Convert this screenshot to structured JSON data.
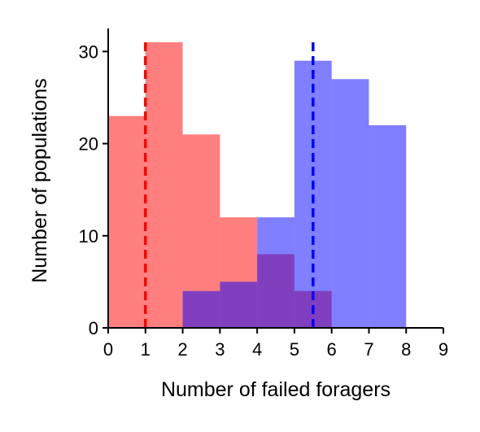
{
  "chart_data": {
    "type": "bar",
    "subtype": "overlaid-histogram",
    "title": "",
    "xlabel": "Number of failed foragers",
    "ylabel": "Number of populations",
    "xlim": [
      0,
      9
    ],
    "ylim": [
      0,
      32.5
    ],
    "xticks": [
      "0",
      "1",
      "2",
      "3",
      "4",
      "5",
      "6",
      "7",
      "8",
      "9"
    ],
    "yticks": [
      "0",
      "10",
      "20",
      "30"
    ],
    "grid": false,
    "legend": "none",
    "series": [
      {
        "color": "#ff0000",
        "opacity": 0.5,
        "bins": [
          {
            "x0": 0,
            "x1": 1,
            "value": 23
          },
          {
            "x0": 1,
            "x1": 2,
            "value": 31
          },
          {
            "x0": 2,
            "x1": 3,
            "value": 21
          },
          {
            "x0": 3,
            "x1": 4,
            "value": 12
          },
          {
            "x0": 4,
            "x1": 5,
            "value": 8
          },
          {
            "x0": 5,
            "x1": 6,
            "value": 4
          }
        ],
        "mean": 1.0
      },
      {
        "color": "#0000ff",
        "opacity": 0.5,
        "bins": [
          {
            "x0": 2,
            "x1": 3,
            "value": 4
          },
          {
            "x0": 3,
            "x1": 4,
            "value": 5
          },
          {
            "x0": 4,
            "x1": 5,
            "value": 12
          },
          {
            "x0": 5,
            "x1": 6,
            "value": 29
          },
          {
            "x0": 6,
            "x1": 7,
            "value": 27
          },
          {
            "x0": 7,
            "x1": 8,
            "value": 22
          }
        ],
        "mean": 5.5
      }
    ]
  }
}
